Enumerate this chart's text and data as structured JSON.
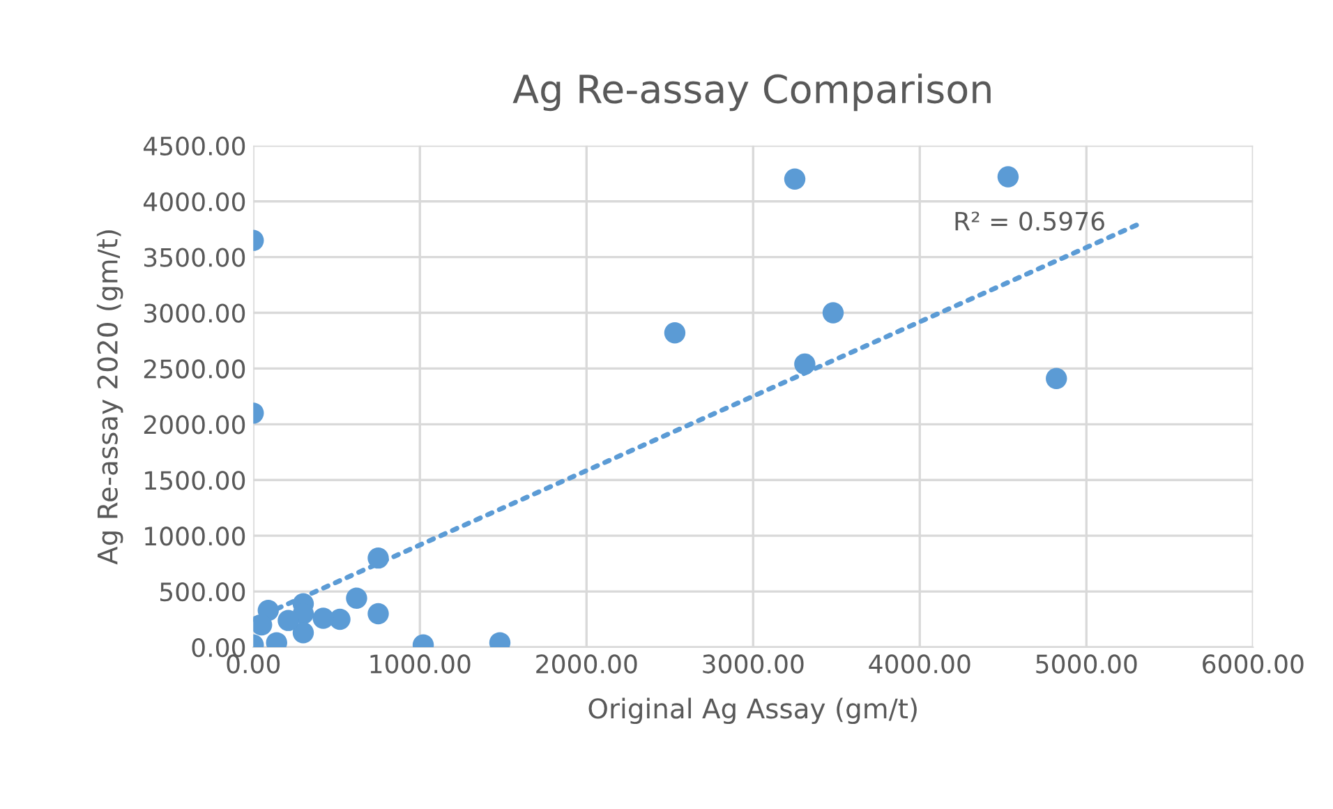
{
  "chart_data": {
    "type": "scatter",
    "title": "Ag Re-assay Comparison",
    "xlabel": "Original Ag Assay (gm/t)",
    "ylabel": "Ag Re-assay 2020 (gm/t)",
    "series": [
      {
        "color": "#5b9bd5",
        "marker": "circle",
        "x": [
          0,
          0,
          3250,
          4530,
          2530,
          3480,
          3310,
          4820,
          750,
          620,
          750,
          1020,
          1480,
          520,
          420,
          300,
          300,
          90,
          50,
          150,
          230,
          300,
          0,
          140,
          210
        ],
        "values": [
          3650,
          2100,
          4200,
          4220,
          2820,
          3000,
          2540,
          2410,
          800,
          440,
          300,
          20,
          40,
          250,
          260,
          390,
          300,
          330,
          200,
          null,
          null,
          130,
          20,
          40,
          240
        ]
      },
      {
        "type": "line",
        "color": "#5b9bd5",
        "marker": "none",
        "line_style": "dotted",
        "x": [
          0,
          5320
        ],
        "values": [
          250,
          3800
        ]
      }
    ],
    "annotations": [
      "R² = 0.5976"
    ],
    "xlim": [
      0,
      6000
    ],
    "xticks": [
      {
        "value": 0,
        "label": "0.00"
      },
      {
        "value": 1000,
        "label": "1000.00"
      },
      {
        "value": 2000,
        "label": "2000.00"
      },
      {
        "value": 3000,
        "label": "3000.00"
      },
      {
        "value": 4000,
        "label": "4000.00"
      },
      {
        "value": 5000,
        "label": "5000.00"
      },
      {
        "value": 6000,
        "label": "6000.00"
      }
    ],
    "ylim": [
      0,
      4500
    ],
    "yticks": [
      {
        "value": 0,
        "label": "0.00"
      },
      {
        "value": 500,
        "label": "500.00"
      },
      {
        "value": 1000,
        "label": "1000.00"
      },
      {
        "value": 1500,
        "label": "1500.00"
      },
      {
        "value": 2000,
        "label": "2000.00"
      },
      {
        "value": 2500,
        "label": "2500.00"
      },
      {
        "value": 3000,
        "label": "3000.00"
      },
      {
        "value": 3500,
        "label": "3500.00"
      },
      {
        "value": 4000,
        "label": "4000.00"
      },
      {
        "value": 4500,
        "label": "4500.00"
      }
    ],
    "grid": true,
    "legend": false
  }
}
